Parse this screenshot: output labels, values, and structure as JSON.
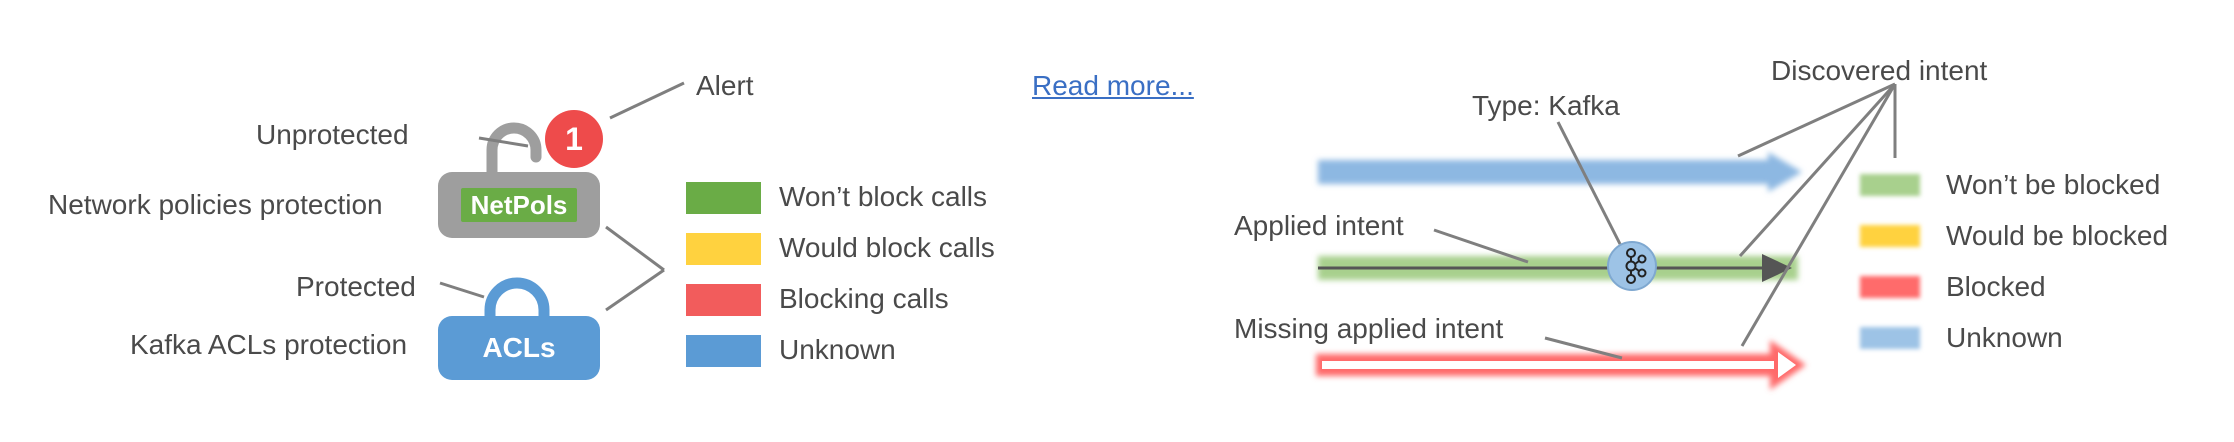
{
  "left_legend": {
    "alert": "Alert",
    "alert_count": "1",
    "unprotected": "Unprotected",
    "netpols_protection": "Network policies protection",
    "netpols_tag": "NetPols",
    "protected": "Protected",
    "acls_protection": "Kafka ACLs protection",
    "acls_tag": "ACLs",
    "status_items": [
      {
        "label": "Won’t block calls",
        "color": "#6aac46"
      },
      {
        "label": "Would block calls",
        "color": "#ffd23f"
      },
      {
        "label": "Blocking calls",
        "color": "#f25c5c"
      },
      {
        "label": "Unknown",
        "color": "#5b9bd5"
      }
    ]
  },
  "read_more": "Read more...",
  "right_legend": {
    "type_kafka": "Type: Kafka",
    "discovered_intent": "Discovered intent",
    "applied_intent": "Applied intent",
    "missing_applied_intent": "Missing applied intent",
    "status_items": [
      {
        "label": "Won’t be blocked",
        "color": "#a8d08d"
      },
      {
        "label": "Would be blocked",
        "color": "#ffd23f"
      },
      {
        "label": "Blocked",
        "color": "#ff6b6b"
      },
      {
        "label": "Unknown",
        "color": "#9dc3e6"
      }
    ]
  },
  "colors": {
    "lock_gray": "#9e9e9e",
    "lock_blue": "#5b9bd5",
    "line_gray": "#7f7f7f",
    "blue_arrow": "#8db8e2",
    "green_band": "#a8d08d",
    "red_arrow": "#ff6b6b"
  },
  "icons": {
    "lock": "padlock-icon",
    "kafka": "kafka-icon"
  }
}
